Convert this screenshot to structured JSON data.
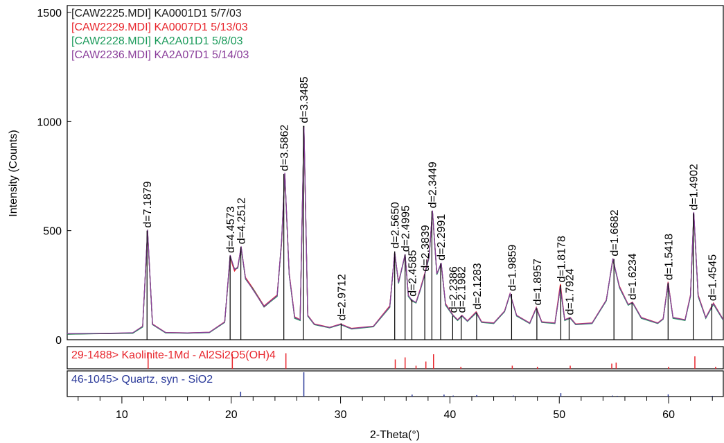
{
  "chart_data": {
    "type": "line",
    "xlabel": "2-Theta(°)",
    "ylabel": "Intensity (Counts)",
    "xlim": [
      5,
      65
    ],
    "ylim": [
      0,
      1500
    ],
    "xticks": [
      10,
      20,
      30,
      40,
      50,
      60
    ],
    "xticks_minor": [
      6,
      8,
      12,
      14,
      16,
      18,
      22,
      24,
      26,
      28,
      32,
      34,
      36,
      38,
      42,
      44,
      46,
      48,
      52,
      54,
      56,
      58,
      62,
      64
    ],
    "yticks": [
      0,
      500,
      1000,
      1500
    ],
    "legend": "top-left",
    "x": [
      5,
      7,
      9,
      11,
      11.9,
      12.35,
      12.8,
      14,
      16,
      18,
      19.4,
      19.9,
      20.3,
      20.6,
      20.9,
      21.3,
      22,
      23,
      24.2,
      24.6,
      24.9,
      25.3,
      25.8,
      26.3,
      26.65,
      27,
      27.6,
      29,
      30,
      31,
      33,
      34.5,
      34.95,
      35.3,
      35.9,
      36.2,
      36.5,
      36.9,
      37.3,
      37.7,
      38.1,
      38.4,
      38.8,
      39.2,
      39.6,
      40.3,
      40.7,
      41.1,
      41.6,
      42.4,
      42.9,
      44,
      45,
      45.5,
      46.1,
      47.3,
      47.9,
      48.4,
      49.6,
      50.1,
      50.5,
      51.0,
      51.5,
      53,
      54.3,
      54.9,
      55.5,
      56.3,
      56.7,
      57.5,
      59,
      59.5,
      59.95,
      60.4,
      61.5,
      62.0,
      62.3,
      62.7,
      63.4,
      64.1,
      65
    ],
    "series": [
      {
        "name": "[CAW2225.MDI] KA0001D1 5/7/03",
        "color": "#1a1a1a",
        "values": [
          25,
          27,
          28,
          30,
          60,
          500,
          70,
          32,
          30,
          33,
          80,
          385,
          320,
          330,
          425,
          280,
          230,
          150,
          200,
          450,
          760,
          300,
          100,
          90,
          980,
          110,
          70,
          55,
          70,
          50,
          60,
          150,
          400,
          260,
          390,
          200,
          180,
          170,
          230,
          300,
          380,
          590,
          300,
          350,
          160,
          110,
          90,
          110,
          85,
          125,
          80,
          75,
          130,
          210,
          110,
          75,
          145,
          80,
          75,
          240,
          90,
          100,
          70,
          75,
          180,
          370,
          240,
          160,
          170,
          100,
          75,
          95,
          260,
          100,
          90,
          200,
          580,
          200,
          100,
          165,
          90
        ]
      },
      {
        "name": "[CAW2229.MDI] KA0007D1 5/13/03",
        "color": "#e8262d",
        "values": [
          27,
          28,
          29,
          31,
          62,
          490,
          72,
          33,
          31,
          34,
          82,
          375,
          315,
          335,
          420,
          285,
          235,
          155,
          205,
          440,
          750,
          305,
          105,
          92,
          960,
          112,
          72,
          57,
          72,
          52,
          62,
          155,
          395,
          265,
          385,
          205,
          175,
          172,
          235,
          305,
          385,
          585,
          305,
          345,
          165,
          112,
          92,
          112,
          87,
          128,
          82,
          77,
          132,
          212,
          112,
          77,
          148,
          82,
          77,
          255,
          92,
          102,
          72,
          77,
          182,
          365,
          245,
          162,
          172,
          102,
          77,
          97,
          265,
          102,
          92,
          205,
          570,
          205,
          102,
          168,
          92
        ]
      },
      {
        "name": "[CAW2228.MDI] KA2A01D1 5/8/03",
        "color": "#1a9a5a",
        "values": [
          26,
          27,
          29,
          30,
          58,
          495,
          69,
          31,
          30,
          32,
          79,
          380,
          325,
          328,
          422,
          278,
          232,
          152,
          198,
          445,
          755,
          298,
          98,
          88,
          970,
          108,
          69,
          54,
          69,
          49,
          59,
          148,
          398,
          258,
          388,
          198,
          178,
          168,
          228,
          298,
          378,
          588,
          298,
          348,
          158,
          108,
          88,
          108,
          84,
          122,
          79,
          74,
          128,
          208,
          108,
          74,
          143,
          79,
          74,
          238,
          88,
          98,
          69,
          74,
          178,
          368,
          238,
          158,
          168,
          98,
          74,
          94,
          258,
          98,
          88,
          198,
          575,
          198,
          98,
          162,
          88
        ]
      },
      {
        "name": "[CAW2236.MDI] KA2A07D1 5/14/03",
        "color": "#8b3f9b",
        "values": [
          28,
          29,
          30,
          32,
          61,
          505,
          71,
          33,
          31,
          34,
          81,
          388,
          322,
          332,
          428,
          282,
          228,
          153,
          202,
          452,
          765,
          302,
          102,
          91,
          975,
          111,
          71,
          56,
          71,
          51,
          61,
          152,
          402,
          262,
          392,
          202,
          182,
          171,
          232,
          302,
          382,
          592,
          302,
          352,
          162,
          111,
          91,
          111,
          86,
          126,
          81,
          76,
          131,
          211,
          111,
          76,
          146,
          81,
          76,
          242,
          91,
          101,
          71,
          76,
          181,
          372,
          242,
          161,
          171,
          101,
          76,
          96,
          262,
          101,
          91,
          202,
          585,
          202,
          101,
          166,
          91
        ]
      }
    ],
    "annotations": [
      {
        "x": 12.3,
        "y": 500,
        "label": "d=7.1879"
      },
      {
        "x": 19.9,
        "y": 385,
        "label": "d=4.4573"
      },
      {
        "x": 20.88,
        "y": 425,
        "label": "d=4.2512"
      },
      {
        "x": 24.81,
        "y": 760,
        "label": "d=3.5862"
      },
      {
        "x": 26.6,
        "y": 980,
        "label": "d=3.3485"
      },
      {
        "x": 30.05,
        "y": 75,
        "label": "d=2.9712"
      },
      {
        "x": 34.95,
        "y": 405,
        "label": "d=2.5650"
      },
      {
        "x": 35.9,
        "y": 390,
        "label": "d=2.4995"
      },
      {
        "x": 36.52,
        "y": 185,
        "label": "d=2.4585"
      },
      {
        "x": 37.7,
        "y": 300,
        "label": "d=2.3839"
      },
      {
        "x": 38.35,
        "y": 590,
        "label": "d=2.3449"
      },
      {
        "x": 39.15,
        "y": 350,
        "label": "d=2.2991"
      },
      {
        "x": 40.25,
        "y": 110,
        "label": "d=2.2386"
      },
      {
        "x": 41.03,
        "y": 110,
        "label": "d=2.1982"
      },
      {
        "x": 42.44,
        "y": 125,
        "label": "d=2.1283"
      },
      {
        "x": 45.64,
        "y": 210,
        "label": "d=1.9859"
      },
      {
        "x": 47.95,
        "y": 145,
        "label": "d=1.8957"
      },
      {
        "x": 50.14,
        "y": 250,
        "label": "d=1.8178"
      },
      {
        "x": 50.9,
        "y": 100,
        "label": "d=1.7924"
      },
      {
        "x": 55.0,
        "y": 370,
        "label": "d=1.6682"
      },
      {
        "x": 56.65,
        "y": 170,
        "label": "d=1.6234"
      },
      {
        "x": 59.95,
        "y": 260,
        "label": "d=1.5418"
      },
      {
        "x": 62.25,
        "y": 580,
        "label": "d=1.4902"
      },
      {
        "x": 63.95,
        "y": 165,
        "label": "d=1.4545"
      }
    ],
    "reference_patterns": [
      {
        "name": "29-1488> Kaolinite-1Md - Al2Si2O5(OH)4",
        "color": "#e8262d",
        "x": [
          12.4,
          20.1,
          25.0,
          35.0,
          35.9,
          36.9,
          37.8,
          38.5,
          41.0,
          45.7,
          48.0,
          51.0,
          54.8,
          55.2,
          60.0,
          62.4,
          64.3
        ],
        "values": [
          80,
          70,
          75,
          45,
          55,
          15,
          35,
          70,
          10,
          15,
          10,
          15,
          25,
          30,
          10,
          60,
          10
        ]
      },
      {
        "name": "46-1045> Quartz, syn - SiO2",
        "color": "#2b3a9a",
        "x": [
          20.86,
          26.64,
          36.54,
          39.46,
          40.3,
          42.45,
          45.8,
          50.14,
          54.87,
          55.3,
          59.96,
          64.0
        ],
        "values": [
          20,
          100,
          8,
          8,
          4,
          6,
          4,
          14,
          4,
          3,
          9,
          3
        ]
      }
    ]
  }
}
